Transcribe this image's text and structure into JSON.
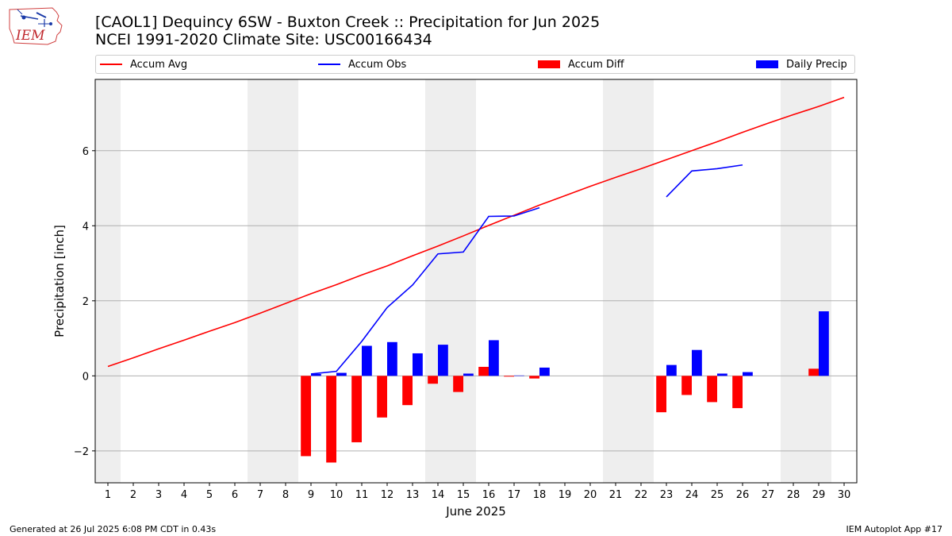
{
  "header": {
    "logo_text": "IEM",
    "title_line1": "[CAOL1] Dequincy 6SW - Buxton Creek :: Precipitation for Jun 2025",
    "title_line2": "NCEI 1991-2020 Climate Site: USC00166434"
  },
  "legend": [
    {
      "label": "Accum Avg",
      "color": "#ff0000",
      "kind": "line"
    },
    {
      "label": "Accum Obs",
      "color": "#0000ff",
      "kind": "line"
    },
    {
      "label": "Accum Diff",
      "color": "#ff0000",
      "kind": "bar"
    },
    {
      "label": "Daily Precip",
      "color": "#0000ff",
      "kind": "bar"
    }
  ],
  "footer": {
    "left": "Generated at 26 Jul 2025 6:08 PM CDT in 0.43s",
    "right": "IEM Autoplot App #17"
  },
  "chart_data": {
    "type": "bar",
    "xlabel": "June 2025",
    "ylabel": "Precipitation [inch]",
    "x": [
      1,
      2,
      3,
      4,
      5,
      6,
      7,
      8,
      9,
      10,
      11,
      12,
      13,
      14,
      15,
      16,
      17,
      18,
      19,
      20,
      21,
      22,
      23,
      24,
      25,
      26,
      27,
      28,
      29,
      30
    ],
    "xlim": [
      0.5,
      30.5
    ],
    "ylim": [
      -2.85,
      7.9
    ],
    "yticks": [
      -2,
      0,
      2,
      4,
      6
    ],
    "grid": "horizontal",
    "weekend_shading_days": [
      1,
      7,
      8,
      14,
      15,
      21,
      22,
      28,
      29
    ],
    "weekend_color": "#eeeeee",
    "series": [
      {
        "name": "Accum Avg",
        "type": "line",
        "color": "#ff0000",
        "x": [
          1,
          2,
          3,
          4,
          5,
          6,
          7,
          8,
          9,
          10,
          11,
          12,
          13,
          14,
          15,
          16,
          17,
          18,
          19,
          20,
          21,
          22,
          23,
          24,
          25,
          26,
          27,
          28,
          29,
          30
        ],
        "values": [
          0.25,
          0.48,
          0.72,
          0.95,
          1.19,
          1.42,
          1.67,
          1.93,
          2.19,
          2.43,
          2.69,
          2.93,
          3.2,
          3.46,
          3.73,
          4.01,
          4.28,
          4.55,
          4.8,
          5.05,
          5.29,
          5.52,
          5.76,
          6.0,
          6.24,
          6.49,
          6.73,
          6.96,
          7.18,
          7.42
        ]
      },
      {
        "name": "Accum Obs",
        "type": "line",
        "color": "#0000ff",
        "x": [
          9,
          10,
          11,
          12,
          13,
          14,
          15,
          16,
          17,
          18,
          23,
          24,
          25,
          26
        ],
        "values": [
          0.05,
          0.12,
          0.92,
          1.82,
          2.42,
          3.25,
          3.3,
          4.25,
          4.26,
          4.48,
          4.77,
          5.46,
          5.52,
          5.62
        ],
        "segments": [
          [
            9,
            18
          ],
          [
            23,
            26
          ]
        ]
      },
      {
        "name": "Accum Diff",
        "type": "bar",
        "color": "#ff0000",
        "x": [
          9,
          10,
          11,
          12,
          13,
          14,
          15,
          16,
          17,
          18,
          23,
          24,
          25,
          26,
          29
        ],
        "values": [
          -2.14,
          -2.31,
          -1.77,
          -1.11,
          -0.78,
          -0.21,
          -0.43,
          0.24,
          -0.02,
          -0.07,
          -0.97,
          -0.51,
          -0.7,
          -0.86,
          0.19
        ]
      },
      {
        "name": "Daily Precip",
        "type": "bar",
        "color": "#0000ff",
        "x": [
          9,
          10,
          11,
          12,
          13,
          14,
          15,
          16,
          17,
          18,
          23,
          24,
          25,
          26,
          29
        ],
        "values": [
          0.05,
          0.08,
          0.8,
          0.9,
          0.6,
          0.83,
          0.06,
          0.95,
          0.01,
          0.22,
          0.29,
          0.69,
          0.06,
          0.1,
          1.72
        ]
      }
    ]
  }
}
